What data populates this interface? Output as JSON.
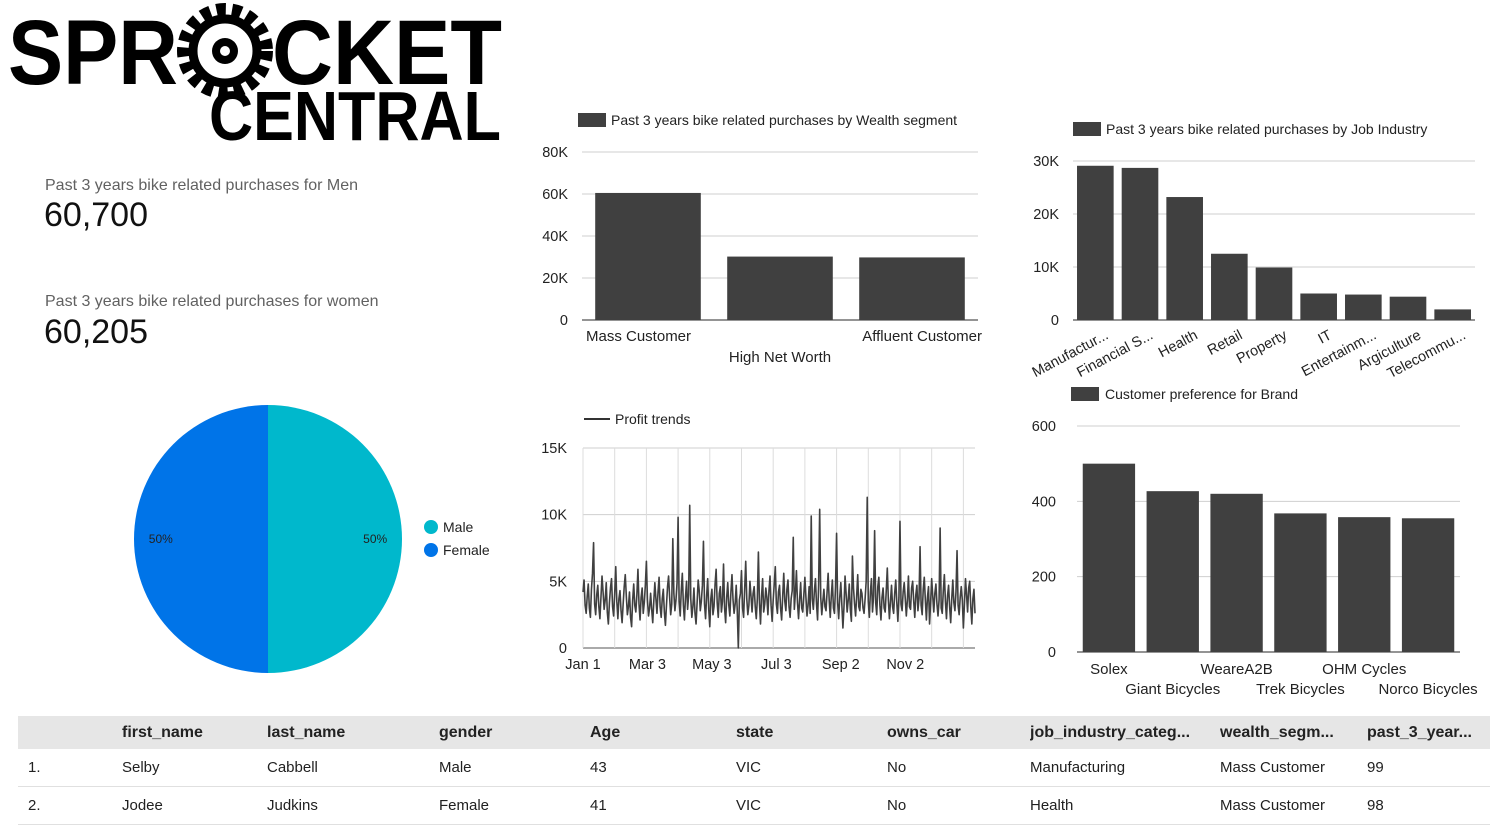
{
  "logo": {
    "line1": "SPR",
    "line1b": "CKET",
    "line2": "CENTRAL"
  },
  "kpis": [
    {
      "label": "Past 3 years bike related purchases for Men",
      "value": "60,700"
    },
    {
      "label": "Past 3 years bike related purchases for women",
      "value": "60,205"
    }
  ],
  "chart_data": [
    {
      "id": "wealth",
      "type": "bar",
      "title": "",
      "legend": [
        "Past 3 years bike related purchases by Wealth segment"
      ],
      "legend_position": "top-left",
      "categories": [
        "Mass Customer",
        "High Net Worth",
        "Affluent Customer"
      ],
      "values": [
        60500,
        30200,
        29800
      ],
      "yticks": [
        "0",
        "20K",
        "40K",
        "60K",
        "80K"
      ],
      "ylim": [
        0,
        80000
      ],
      "grid": true,
      "color": "#404040"
    },
    {
      "id": "industry",
      "type": "bar",
      "title": "",
      "legend": [
        "Past 3 years bike related purchases by Job Industry"
      ],
      "legend_position": "top-left",
      "categories": [
        "Manufactur...",
        "Financial S...",
        "Health",
        "Retail",
        "Property",
        "IT",
        "Entertainm...",
        "Argiculture",
        "Telecommu..."
      ],
      "values": [
        29100,
        28700,
        23200,
        12500,
        9900,
        5000,
        4800,
        4400,
        2000
      ],
      "yticks": [
        "0",
        "10K",
        "20K",
        "30K"
      ],
      "ylim": [
        0,
        30000
      ],
      "grid": true,
      "color": "#404040"
    },
    {
      "id": "gender",
      "type": "pie",
      "title": "",
      "categories": [
        "Male",
        "Female"
      ],
      "values": [
        50,
        50
      ],
      "labels": [
        "50%",
        "50%"
      ],
      "colors": [
        "#00b8cc",
        "#0074e8"
      ],
      "legend_position": "right"
    },
    {
      "id": "profit",
      "type": "line",
      "title": "",
      "legend": [
        "Profit trends"
      ],
      "legend_position": "top-left",
      "x_start": "Jan 1",
      "x_end": "Dec 31",
      "xticks": [
        "Jan 1",
        "Mar 3",
        "May 3",
        "Jul 3",
        "Sep 2",
        "Nov 2"
      ],
      "yticks": [
        "0",
        "5K",
        "10K",
        "15K"
      ],
      "ylim": [
        0,
        15000
      ],
      "values": [
        4200,
        5100,
        3200,
        2600,
        3900,
        4800,
        3000,
        2300,
        4400,
        5600,
        7900,
        3300,
        2500,
        4000,
        4700,
        3100,
        2200,
        3800,
        5400,
        4200,
        2900,
        3600,
        4900,
        2700,
        1800,
        3400,
        4500,
        5200,
        3100,
        2400,
        4100,
        6100,
        3500,
        2200,
        3700,
        4300,
        2800,
        1900,
        3300,
        4600,
        5500,
        3900,
        2500,
        3100,
        4200,
        2300,
        1600,
        3600,
        4800,
        3200,
        2700,
        4000,
        5900,
        3300,
        2100,
        3800,
        4500,
        2600,
        3400,
        4700,
        6500,
        3600,
        2400,
        3000,
        4100,
        2900,
        1900,
        3500,
        4900,
        3700,
        2600,
        4200,
        5300,
        3100,
        2300,
        3700,
        4400,
        2700,
        1700,
        3200,
        4600,
        5400,
        3800,
        2500,
        3300,
        8200,
        4100,
        2800,
        3600,
        4900,
        9800,
        3500,
        2400,
        4300,
        5600,
        3200,
        2100,
        3800,
        5000,
        2900,
        4000,
        10700,
        3700,
        2300,
        3100,
        4500,
        2600,
        1800,
        3400,
        5100,
        4300,
        2800,
        3500,
        4700,
        8000,
        3300,
        2200,
        3900,
        5200,
        2900,
        1600,
        3700,
        4400,
        2500,
        3100,
        4800,
        5900,
        3400,
        2300,
        4100,
        4600,
        2700,
        3500,
        6300,
        3000,
        1900,
        3800,
        4900,
        3200,
        2400,
        4200,
        5500,
        3600,
        2600,
        3300,
        4700,
        2800,
        0,
        3600,
        4100,
        5800,
        3000,
        2300,
        4400,
        6500,
        3700,
        2500,
        3200,
        5000,
        3900,
        2700,
        4100,
        4600,
        3100,
        2200,
        3700,
        7200,
        3400,
        1800,
        3900,
        5200,
        2700,
        3300,
        4500,
        3800,
        2500,
        4300,
        5400,
        3200,
        2000,
        3600,
        4800,
        6100,
        3300,
        2600,
        4200,
        4700,
        3000,
        2100,
        3900,
        5600,
        3500,
        2800,
        4400,
        5100,
        3100,
        2300,
        3700,
        4300,
        8300,
        2900,
        4100,
        5800,
        3400,
        2200,
        3600,
        4900,
        3000,
        2700,
        4000,
        5300,
        3800,
        2400,
        3200,
        4600,
        2600,
        9900,
        3700,
        2900,
        4300,
        5200,
        3300,
        2100,
        4700,
        10400,
        3800,
        2500,
        3500,
        4400,
        3100,
        2800,
        4200,
        5600,
        3600,
        2300,
        3900,
        5100,
        3000,
        2600,
        4600,
        8600,
        3400,
        2200,
        3800,
        4900,
        3200,
        1500,
        3100,
        5400,
        4100,
        2700,
        3600,
        4800,
        2900,
        2000,
        6900,
        4500,
        3300,
        2400,
        3900,
        5500,
        3100,
        2800,
        4400,
        4100,
        3000,
        2600,
        3700,
        5000,
        11300,
        3500,
        2300,
        4200,
        5200,
        2700,
        3900,
        8800,
        3400,
        2500,
        4600,
        5300,
        3200,
        2100,
        3800,
        4500,
        3000,
        2700,
        4300,
        6000,
        3600,
        2200,
        3500,
        4700,
        3100,
        2600,
        4100,
        5100,
        3400,
        2000,
        3800,
        9500,
        3300,
        2800,
        4200,
        4900,
        3700,
        2400,
        3600,
        5400,
        3100,
        2900,
        4500,
        5000,
        3500,
        2300,
        4000,
        4700,
        2800,
        3700,
        7600,
        3200,
        2500,
        4400,
        5300,
        3600,
        2100,
        3800,
        4600,
        1800,
        3400,
        5200,
        3900,
        2700,
        4100,
        4800,
        3300,
        2400,
        3600,
        9000,
        3000,
        2600,
        4300,
        5500,
        3500,
        2200,
        3900,
        4700,
        3100,
        1900,
        3700,
        5100,
        3400,
        2800,
        4200,
        7300,
        3200,
        2500,
        3800,
        4600,
        3600,
        1500,
        3300,
        5200,
        4000,
        2700,
        4500,
        5000,
        3100,
        1800,
        3700,
        4400,
        2600
      ]
    },
    {
      "id": "brand",
      "type": "bar",
      "title": "",
      "legend": [
        "Customer preference for Brand"
      ],
      "legend_position": "top-left",
      "categories": [
        "Solex",
        "Giant Bicycles",
        "WeareA2B",
        "Trek Bicycles",
        "OHM Cycles",
        "Norco Bicycles"
      ],
      "values": [
        500,
        427,
        420,
        368,
        358,
        355
      ],
      "yticks": [
        "0",
        "200",
        "400",
        "600"
      ],
      "ylim": [
        0,
        600
      ],
      "grid": true,
      "color": "#404040"
    }
  ],
  "table": {
    "columns": [
      "",
      "first_name",
      "last_name",
      "gender",
      "Age",
      "state",
      "owns_car",
      "job_industry_categ...",
      "wealth_segm...",
      "past_3_year..."
    ],
    "rows": [
      [
        "1.",
        "Selby",
        "Cabbell",
        "Male",
        "43",
        "VIC",
        "No",
        "Manufacturing",
        "Mass Customer",
        "99"
      ],
      [
        "2.",
        "Jodee",
        "Judkins",
        "Female",
        "41",
        "VIC",
        "No",
        "Health",
        "Mass Customer",
        "98"
      ]
    ]
  }
}
